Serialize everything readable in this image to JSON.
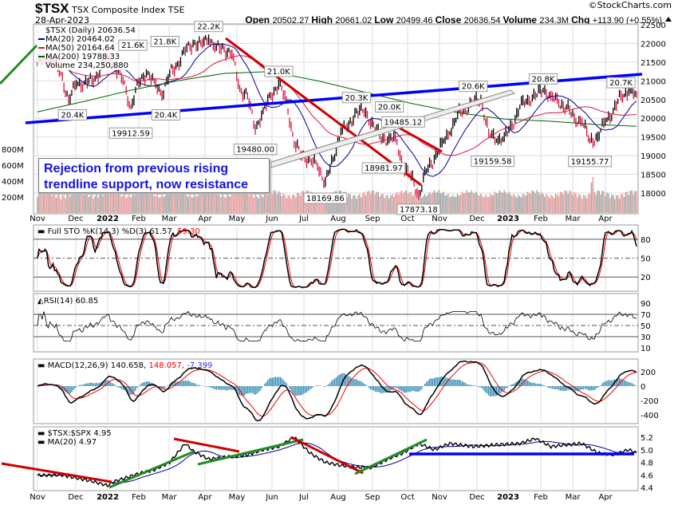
{
  "header": {
    "symbol": "$TSX",
    "name": "TSX Composite Index",
    "exchange": "TSE",
    "date": "28-Apr-2023",
    "watermark": "©StockCharts.com",
    "open_label": "Open",
    "open": "20502.27",
    "high_label": "High",
    "high": "20661.02",
    "low_label": "Low",
    "low": "20499.46",
    "close_label": "Close",
    "close": "20636.54",
    "volume_label": "Volume",
    "volume": "234.3M",
    "chg_label": "Chg",
    "chg": "+113.90 (+0.55%)",
    "chg_icon": "up-triangle-icon"
  },
  "legend": {
    "price": "$TSX (Daily) 20636.54",
    "ma20": "MA(20) 20464.02",
    "ma50": "MA(50) 20164.64",
    "ma200": "MA(200) 19788.33",
    "volume": "Volume 234,250,880"
  },
  "callout": {
    "line1": "Rejection from previous rising",
    "line2": "trendline support, now resistance"
  },
  "colors": {
    "ma20": "#00008b",
    "ma50": "#dc143c",
    "ma200": "#006400",
    "up": "#000000",
    "down": "#dc143c",
    "trend_blue": "#0000ff",
    "trend_red": "#cc0000",
    "trend_green": "#228b22",
    "histogram": "#3b8fb5"
  },
  "chart_data": {
    "type": "line",
    "title": "$TSX TSX Composite Index TSE",
    "x_months": [
      "Nov",
      "Dec",
      "2022",
      "Feb",
      "Mar",
      "Apr",
      "May",
      "Jun",
      "Jul",
      "Aug",
      "Sep",
      "Oct",
      "Nov",
      "Dec",
      "2023",
      "Feb",
      "Mar",
      "Apr"
    ],
    "price": {
      "ylim": [
        17600,
        22600
      ],
      "ticks": [
        "22500",
        "22000",
        "21500",
        "21000",
        "20500",
        "20000",
        "19500",
        "19000",
        "18500",
        "18000"
      ],
      "volume_ticks": [
        "800M",
        "600M",
        "400M",
        "200M"
      ],
      "weekly_closes": [
        21450,
        21600,
        21500,
        21200,
        20500,
        20900,
        20950,
        21000,
        21200,
        21650,
        21350,
        21000,
        20300,
        20950,
        21200,
        21000,
        20600,
        21200,
        21450,
        21800,
        22000,
        22000,
        22100,
        21900,
        21850,
        21700,
        20800,
        20600,
        19700,
        20200,
        20600,
        20900,
        20500,
        19300,
        19000,
        18900,
        18700,
        18300,
        18900,
        19650,
        19800,
        20200,
        20150,
        19900,
        19500,
        19400,
        19500,
        18700,
        18450,
        17950,
        18600,
        18900,
        19350,
        19600,
        20100,
        20250,
        20400,
        20500,
        19600,
        19400,
        19500,
        19800,
        20300,
        20500,
        20600,
        20750,
        20600,
        20400,
        20300,
        20000,
        19900,
        19400,
        19500,
        19900,
        20200,
        20600,
        20700,
        20636.54
      ],
      "ma200_weekly_samples": {
        "weeks": [
          0,
          6,
          12,
          18,
          24,
          30,
          36,
          42,
          48,
          54,
          60,
          66,
          72,
          77
        ],
        "values": [
          20170,
          20450,
          20750,
          21000,
          21200,
          21250,
          21000,
          20700,
          20400,
          20150,
          19980,
          19920,
          19830,
          19788
        ]
      },
      "annotations": [
        {
          "text": "21.6K",
          "week": 2,
          "price": 21750,
          "pos": "above"
        },
        {
          "text": "20.4K",
          "week": 4.5,
          "price": 20400,
          "pos": "below"
        },
        {
          "text": "21.8K",
          "week": 9,
          "price": 21850,
          "pos": "above"
        },
        {
          "text": "19912.59",
          "week": 12,
          "price": 19912.59,
          "pos": "below"
        },
        {
          "text": "20.4K",
          "week": 16.5,
          "price": 20400,
          "pos": "below"
        },
        {
          "text": "22.2K",
          "week": 22,
          "price": 22250,
          "pos": "above"
        },
        {
          "text": "19480.00",
          "week": 28,
          "price": 19480,
          "pos": "below"
        },
        {
          "text": "21.0K",
          "week": 31,
          "price": 21050,
          "pos": "above"
        },
        {
          "text": "18169.86",
          "week": 37,
          "price": 18169.86,
          "pos": "below"
        },
        {
          "text": "20.3K",
          "week": 41,
          "price": 20350,
          "pos": "above"
        },
        {
          "text": "20.0K",
          "week": 44,
          "price": 20100,
          "pos": "above"
        },
        {
          "text": "19485.12",
          "week": 47,
          "price": 19700,
          "pos": "above"
        },
        {
          "text": "18981.97",
          "week": 44.5,
          "price": 18981.97,
          "pos": "below"
        },
        {
          "text": "17873.18",
          "week": 49,
          "price": 17873.18,
          "pos": "below"
        },
        {
          "text": "20.6K",
          "week": 56,
          "price": 20650,
          "pos": "above"
        },
        {
          "text": "19159.58",
          "week": 58.5,
          "price": 19159.58,
          "pos": "below"
        },
        {
          "text": "20.8K",
          "week": 65,
          "price": 20850,
          "pos": "above"
        },
        {
          "text": "19155.77",
          "week": 71,
          "price": 19155.77,
          "pos": "below"
        },
        {
          "text": "20.7K",
          "week": 75,
          "price": 20750,
          "pos": "above"
        }
      ]
    },
    "sto": {
      "label": "Full STO %K(14,3) %D(3) 61.57,",
      "d_value": "59.30",
      "ticks": [
        "80",
        "50",
        "20"
      ],
      "ylim": [
        0,
        100
      ]
    },
    "rsi": {
      "label": "RSI(14) 60.85",
      "ticks": [
        "90",
        "70",
        "50",
        "30",
        "10"
      ],
      "ylim": [
        0,
        100
      ]
    },
    "macd": {
      "label": "MACD(12,26,9) 140.658,",
      "signal": "148.057,",
      "hist": "-7.399",
      "ticks": [
        "200",
        "0",
        "-200",
        "-400"
      ],
      "ylim": [
        -500,
        320
      ]
    },
    "ratio": {
      "label": "$TSX:$SPX 4.95",
      "ma_label": "MA(20) 4.97",
      "ticks": [
        "5.2",
        "5.0",
        "4.8",
        "4.6",
        "4.4"
      ],
      "ylim": [
        4.35,
        5.3
      ],
      "weekly_samples": {
        "weeks": [
          0,
          3,
          5,
          7,
          9,
          10,
          13,
          15,
          17,
          19,
          20,
          22,
          24,
          27,
          29,
          31,
          33,
          35,
          37,
          39,
          41,
          43,
          45,
          47,
          49,
          51,
          53,
          56,
          59,
          62,
          64,
          66,
          68,
          70,
          72,
          74,
          76,
          77
        ],
        "values": [
          4.59,
          4.6,
          4.55,
          4.5,
          4.43,
          4.5,
          4.62,
          4.68,
          4.8,
          5.1,
          4.98,
          4.85,
          4.88,
          4.92,
          5.0,
          5.05,
          5.2,
          4.95,
          4.8,
          4.75,
          4.72,
          4.72,
          4.85,
          4.95,
          5.1,
          5.0,
          5.1,
          5.05,
          5.08,
          5.1,
          5.18,
          5.05,
          5.08,
          5.1,
          4.95,
          4.92,
          5.0,
          4.95
        ]
      }
    }
  }
}
